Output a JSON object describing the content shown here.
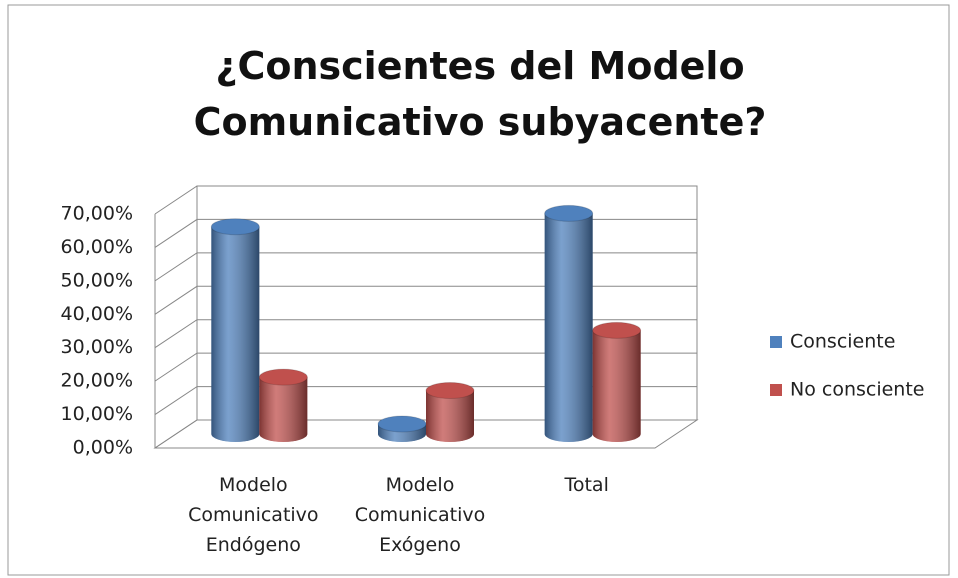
{
  "chart_data": {
    "type": "bar3d",
    "title": "¿Conscientes del Modelo Comunicativo subyacente?",
    "categories": [
      "Modelo Comunicativo Endógeno",
      "Modelo Comunicativo Exógeno",
      "Total"
    ],
    "series": [
      {
        "name": "Consciente",
        "color": "#4f81bd",
        "values": [
          62,
          3,
          66
        ]
      },
      {
        "name": "No consciente",
        "color": "#c0504d",
        "values": [
          17,
          13,
          31
        ]
      }
    ],
    "ylim": [
      0,
      70
    ],
    "yticks": [
      {
        "value": 0,
        "label": "0,00%"
      },
      {
        "value": 10,
        "label": "10,00%"
      },
      {
        "value": 20,
        "label": "20,00%"
      },
      {
        "value": 30,
        "label": "30,00%"
      },
      {
        "value": 40,
        "label": "40,00%"
      },
      {
        "value": 50,
        "label": "50,00%"
      },
      {
        "value": 60,
        "label": "60,00%"
      },
      {
        "value": 70,
        "label": "70,00%"
      }
    ],
    "grid": true,
    "legend": "right"
  }
}
